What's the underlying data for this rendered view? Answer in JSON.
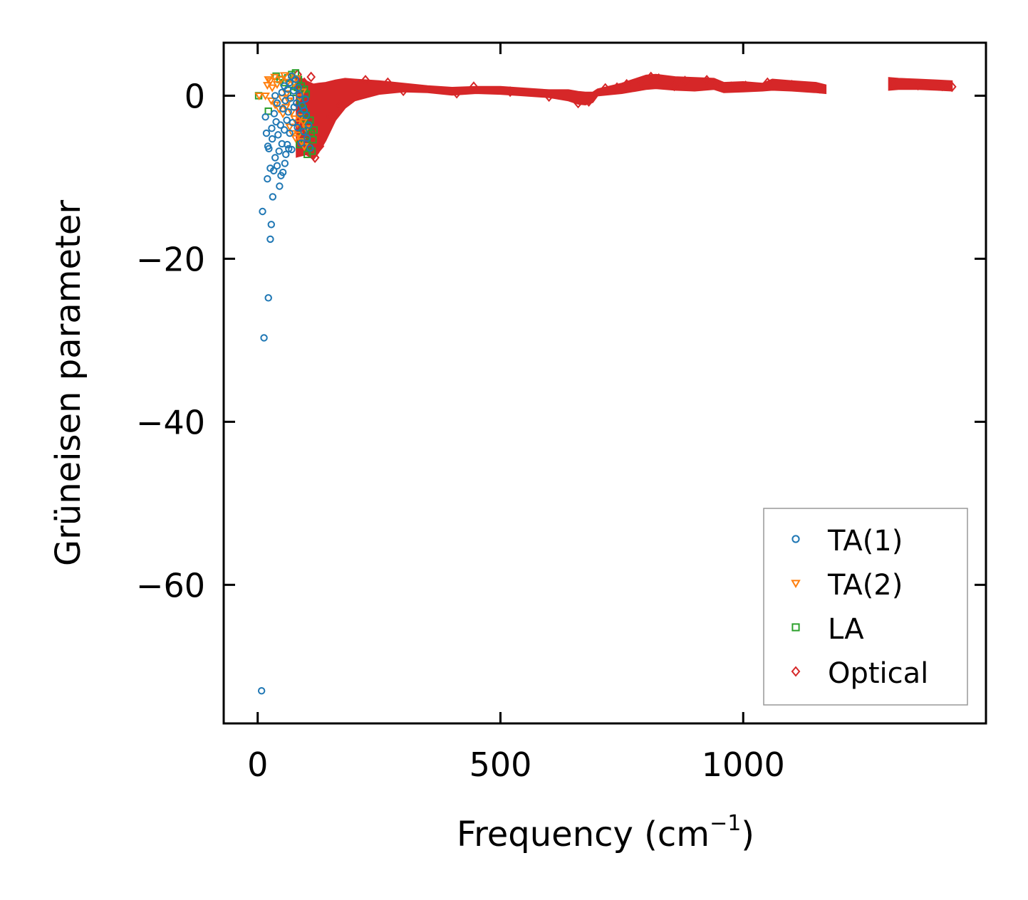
{
  "chart_data": {
    "type": "scatter",
    "title": "",
    "xlabel": "Frequency (cm",
    "xlabel_sup": "−1",
    "xlabel_close": ")",
    "ylabel": "Grüneisen parameter",
    "xlim": [
      -70,
      1500
    ],
    "ylim": [
      -77,
      6.5
    ],
    "x_ticks": [
      0,
      500,
      1000
    ],
    "y_ticks": [
      0,
      -20,
      -40,
      -60
    ],
    "x_tick_labels": [
      "0",
      "500",
      "1000"
    ],
    "y_tick_labels": [
      "0",
      "−20",
      "−40",
      "−60"
    ],
    "legend_position": "lower-right",
    "series": [
      {
        "name": "TA(1)",
        "color": "#1f77b4",
        "marker": "circle",
        "points": [
          [
            8,
            -73
          ],
          [
            13,
            -29.7
          ],
          [
            22,
            -24.8
          ],
          [
            26,
            -17.6
          ],
          [
            28,
            -15.8
          ],
          [
            10,
            -14.2
          ],
          [
            31,
            -12.4
          ],
          [
            45,
            -11.1
          ],
          [
            20,
            -10.2
          ],
          [
            52,
            -9.4
          ],
          [
            33,
            -9.2
          ],
          [
            26,
            -8.9
          ],
          [
            40,
            -8.6
          ],
          [
            48,
            -9.8
          ],
          [
            56,
            -8.3
          ],
          [
            36,
            -7.6
          ],
          [
            44,
            -6.8
          ],
          [
            58,
            -7.2
          ],
          [
            64,
            -6.5
          ],
          [
            21,
            -6.2
          ],
          [
            23,
            -6.5
          ],
          [
            30,
            -5.3
          ],
          [
            50,
            -5.9
          ],
          [
            61,
            -6.0
          ],
          [
            70,
            -6.6
          ],
          [
            18,
            -4.6
          ],
          [
            29,
            -4.0
          ],
          [
            42,
            -4.8
          ],
          [
            55,
            -4.2
          ],
          [
            66,
            -4.6
          ],
          [
            38,
            -3.2
          ],
          [
            47,
            -3.6
          ],
          [
            60,
            -3.0
          ],
          [
            72,
            -3.3
          ],
          [
            82,
            -3.9
          ],
          [
            16,
            -2.6
          ],
          [
            34,
            -2.2
          ],
          [
            52,
            -1.6
          ],
          [
            63,
            -2.0
          ],
          [
            75,
            -1.4
          ],
          [
            88,
            -2.2
          ],
          [
            96,
            -1.8
          ],
          [
            40,
            -0.9
          ],
          [
            57,
            -0.6
          ],
          [
            68,
            -0.3
          ],
          [
            80,
            -0.9
          ],
          [
            92,
            -1.2
          ],
          [
            100,
            -2.4
          ],
          [
            36,
            0.0
          ],
          [
            50,
            0.4
          ],
          [
            62,
            0.8
          ],
          [
            74,
            0.6
          ],
          [
            86,
            0.1
          ],
          [
            98,
            -0.4
          ],
          [
            55,
            1.2
          ],
          [
            66,
            1.6
          ],
          [
            78,
            2.0
          ],
          [
            70,
            2.4
          ],
          [
            84,
            1.0
          ],
          [
            102,
            -5.2
          ],
          [
            108,
            -6.4
          ],
          [
            95,
            -4.4
          ],
          [
            105,
            -3.6
          ],
          [
            90,
            -5.8
          ]
        ]
      },
      {
        "name": "TA(2)",
        "color": "#ff7f0e",
        "marker": "triangle-down",
        "points": [
          [
            3,
            0.0
          ],
          [
            16,
            0.0
          ],
          [
            20,
            1.3
          ],
          [
            26,
            1.8
          ],
          [
            22,
            2.0
          ],
          [
            30,
            1.0
          ],
          [
            35,
            2.3
          ],
          [
            40,
            1.4
          ],
          [
            48,
            2.0
          ],
          [
            55,
            2.5
          ],
          [
            62,
            1.7
          ],
          [
            68,
            2.4
          ],
          [
            74,
            1.5
          ],
          [
            80,
            2.1
          ],
          [
            28,
            -0.6
          ],
          [
            36,
            -1.1
          ],
          [
            44,
            -1.6
          ],
          [
            52,
            -2.2
          ],
          [
            58,
            -1.4
          ],
          [
            64,
            -0.6
          ],
          [
            70,
            -2.0
          ],
          [
            76,
            -2.8
          ],
          [
            82,
            -3.4
          ],
          [
            88,
            -2.6
          ],
          [
            94,
            -3.2
          ],
          [
            100,
            -4.0
          ],
          [
            66,
            -3.8
          ],
          [
            72,
            -4.6
          ],
          [
            78,
            -5.2
          ],
          [
            84,
            -4.8
          ],
          [
            90,
            -5.6
          ],
          [
            96,
            -6.2
          ],
          [
            86,
            -0.2
          ],
          [
            92,
            0.5
          ],
          [
            60,
            0.3
          ],
          [
            50,
            -0.3
          ]
        ]
      },
      {
        "name": "LA",
        "color": "#2ca02c",
        "marker": "square",
        "points": [
          [
            2,
            0.0
          ],
          [
            22,
            -1.9
          ],
          [
            38,
            2.4
          ],
          [
            46,
            2.0
          ],
          [
            54,
            1.6
          ],
          [
            62,
            2.2
          ],
          [
            70,
            2.6
          ],
          [
            78,
            2.8
          ],
          [
            84,
            2.0
          ],
          [
            90,
            1.2
          ],
          [
            96,
            0.8
          ],
          [
            100,
            0.2
          ],
          [
            88,
            -0.6
          ],
          [
            94,
            -1.6
          ],
          [
            100,
            -2.4
          ],
          [
            104,
            -3.6
          ],
          [
            110,
            -4.6
          ],
          [
            114,
            -5.4
          ],
          [
            92,
            -4.4
          ],
          [
            98,
            -5.6
          ],
          [
            106,
            -6.4
          ],
          [
            112,
            -6.8
          ],
          [
            86,
            -6.0
          ],
          [
            102,
            -7.2
          ],
          [
            108,
            -3.0
          ],
          [
            116,
            -4.2
          ],
          [
            96,
            -2.8
          ],
          [
            82,
            1.0
          ],
          [
            74,
            0.4
          ],
          [
            66,
            1.4
          ]
        ]
      },
      {
        "name": "Optical",
        "color": "#d62728",
        "marker": "diamond",
        "band": {
          "x": [
            80,
            100,
            115,
            125,
            140,
            160,
            180,
            200,
            250,
            300,
            350,
            400,
            450,
            500,
            550,
            600,
            640,
            660,
            675,
            690,
            700,
            750,
            800,
            820,
            860,
            900,
            940,
            960,
            1000,
            1040,
            1060,
            1100,
            1150,
            1170
          ],
          "lower": [
            -7.5,
            -7.2,
            -7.8,
            -7.0,
            -5.5,
            -3.0,
            -1.5,
            -0.6,
            0.2,
            0.5,
            0.4,
            0.1,
            0.3,
            0.2,
            0.0,
            -0.2,
            -0.6,
            -1.0,
            -1.1,
            -0.8,
            0.0,
            0.3,
            0.8,
            0.9,
            0.7,
            0.6,
            0.8,
            0.4,
            0.5,
            0.6,
            0.7,
            0.6,
            0.4,
            0.3
          ],
          "upper": [
            2.4,
            1.8,
            1.4,
            1.5,
            1.6,
            1.9,
            2.1,
            2.0,
            1.8,
            1.5,
            1.2,
            1.0,
            1.1,
            1.1,
            0.9,
            0.7,
            0.7,
            0.5,
            0.4,
            0.4,
            0.8,
            1.5,
            2.5,
            2.6,
            2.3,
            2.2,
            2.1,
            1.6,
            1.7,
            1.5,
            2.0,
            1.8,
            1.6,
            1.3
          ]
        },
        "band2": {
          "x": [
            1300,
            1320,
            1360,
            1400,
            1430
          ],
          "lower": [
            0.7,
            0.8,
            0.8,
            0.7,
            0.6
          ],
          "upper": [
            2.2,
            2.1,
            2.0,
            1.9,
            1.8
          ]
        },
        "points": [
          [
            82,
            2.6
          ],
          [
            96,
            1.6
          ],
          [
            110,
            2.3
          ],
          [
            90,
            -5.6
          ],
          [
            104,
            -6.8
          ],
          [
            118,
            -7.6
          ],
          [
            128,
            -6.2
          ],
          [
            135,
            -4.8
          ],
          [
            150,
            -2.6
          ],
          [
            170,
            -1.2
          ],
          [
            222,
            1.9
          ],
          [
            268,
            1.6
          ],
          [
            300,
            0.6
          ],
          [
            410,
            0.3
          ],
          [
            445,
            1.1
          ],
          [
            520,
            0.5
          ],
          [
            600,
            -0.1
          ],
          [
            660,
            -0.9
          ],
          [
            682,
            -0.7
          ],
          [
            716,
            0.9
          ],
          [
            740,
            1.0
          ],
          [
            760,
            1.4
          ],
          [
            790,
            1.6
          ],
          [
            810,
            2.3
          ],
          [
            826,
            2.1
          ],
          [
            858,
            1.2
          ],
          [
            880,
            1.8
          ],
          [
            925,
            1.9
          ],
          [
            944,
            1.4
          ],
          [
            975,
            1.1
          ],
          [
            1005,
            1.2
          ],
          [
            1050,
            1.6
          ],
          [
            1100,
            1.3
          ],
          [
            1158,
            0.9
          ],
          [
            1310,
            1.4
          ],
          [
            1360,
            1.3
          ],
          [
            1410,
            1.2
          ],
          [
            1430,
            1.1
          ]
        ]
      }
    ]
  }
}
